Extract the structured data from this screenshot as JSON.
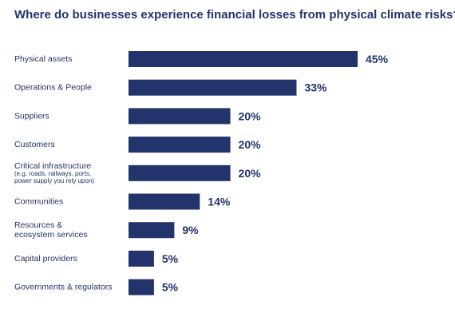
{
  "chart_data": {
    "type": "bar",
    "orientation": "horizontal",
    "title": "Where do businesses experience financial losses from physical climate risks?",
    "categories": [
      "Physical assets",
      "Operations & People",
      "Suppliers",
      "Customers",
      "Critical infrastructure",
      "Communities",
      "Resources & ecosystem services",
      "Capital providers",
      "Governments & regulators"
    ],
    "category_lines": [
      [
        "Physical assets"
      ],
      [
        "Operations & People"
      ],
      [
        "Suppliers"
      ],
      [
        "Customers"
      ],
      [
        "Critical infrastructure"
      ],
      [
        "Communities"
      ],
      [
        "Resources &",
        "ecosystem services"
      ],
      [
        "Capital providers"
      ],
      [
        "Governments & regulators"
      ]
    ],
    "category_notes": [
      "",
      "",
      "",
      "",
      "(e.g. roads, railways, ports, power supply you rely upon)",
      "",
      "",
      "",
      ""
    ],
    "category_note_lines": [
      [],
      [],
      [],
      [],
      [
        "(e.g. roads, railways, ports,",
        "power supply you rely upon)"
      ],
      [],
      [],
      [],
      []
    ],
    "values": [
      45,
      33,
      20,
      20,
      20,
      14,
      9,
      5,
      5
    ],
    "labels": [
      "45%",
      "33%",
      "20%",
      "20%",
      "20%",
      "14%",
      "9%",
      "5%",
      "5%"
    ],
    "unit": "%",
    "bar_color": "#23336b",
    "text_color": "#23336b",
    "xlim": [
      0,
      45
    ],
    "grid": false,
    "legend": "none"
  }
}
